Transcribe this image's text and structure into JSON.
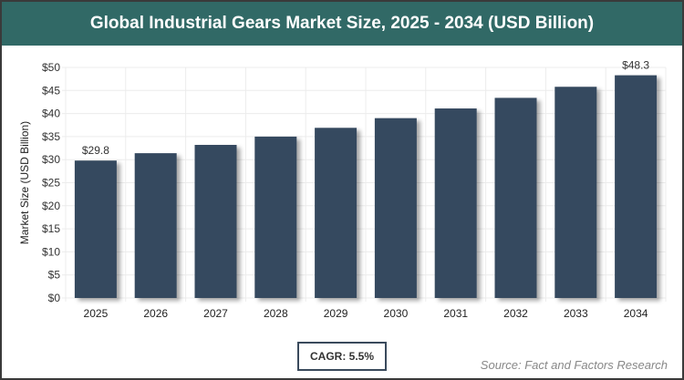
{
  "chart_data": {
    "type": "bar",
    "title": "Global Industrial Gears Market Size, 2025 - 2034 (USD Billion)",
    "xlabel": "",
    "ylabel": "Market Size (USD Billion)",
    "categories": [
      "2025",
      "2026",
      "2027",
      "2028",
      "2029",
      "2030",
      "2031",
      "2032",
      "2033",
      "2034"
    ],
    "values": [
      29.8,
      31.4,
      33.2,
      35.0,
      36.9,
      39.0,
      41.1,
      43.4,
      45.8,
      48.3
    ],
    "data_labels": {
      "0": "$29.8",
      "9": "$48.3"
    },
    "ylim": [
      0,
      50
    ],
    "yticks": [
      "$0",
      "$5",
      "$10",
      "$15",
      "$20",
      "$25",
      "$30",
      "$35",
      "$40",
      "$45",
      "$50"
    ],
    "grid": true,
    "bar_color": "#36495e"
  },
  "cagr": "CAGR: 5.5%",
  "source": "Source: Fact and Factors Research",
  "colors": {
    "header": "#316966",
    "border": "#3a3a3a"
  }
}
